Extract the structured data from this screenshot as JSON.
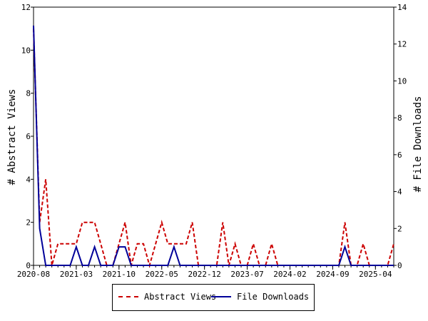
{
  "chart_data": {
    "type": "line",
    "title": "",
    "ylabel_left": "# Abstract Views",
    "ylabel_right": "# File Downloads",
    "xlabel": "",
    "x_tick_labels": [
      "2020-08",
      "2021-03",
      "2021-10",
      "2022-05",
      "2022-12",
      "2023-07",
      "2024-02",
      "2024-09",
      "2025-04"
    ],
    "ylim_left": [
      0,
      12
    ],
    "ylim_right": [
      0,
      14
    ],
    "yticks_left": [
      0,
      2,
      4,
      6,
      8,
      10,
      12
    ],
    "yticks_right": [
      0,
      2,
      4,
      6,
      8,
      10,
      12,
      14
    ],
    "grid": false,
    "legend_position": "bottom",
    "x_months": [
      "2020-08",
      "2020-09",
      "2020-10",
      "2020-11",
      "2020-12",
      "2021-01",
      "2021-02",
      "2021-03",
      "2021-04",
      "2021-05",
      "2021-06",
      "2021-07",
      "2021-08",
      "2021-09",
      "2021-10",
      "2021-11",
      "2021-12",
      "2022-01",
      "2022-02",
      "2022-03",
      "2022-04",
      "2022-05",
      "2022-06",
      "2022-07",
      "2022-08",
      "2022-09",
      "2022-10",
      "2022-11",
      "2022-12",
      "2023-01",
      "2023-02",
      "2023-03",
      "2023-04",
      "2023-05",
      "2023-06",
      "2023-07",
      "2023-08",
      "2023-09",
      "2023-10",
      "2023-11",
      "2023-12",
      "2024-01",
      "2024-02",
      "2024-03",
      "2024-04",
      "2024-05",
      "2024-06",
      "2024-07",
      "2024-08",
      "2024-09",
      "2024-10",
      "2024-11",
      "2024-12",
      "2025-01",
      "2025-02",
      "2025-03",
      "2025-04",
      "2025-05",
      "2025-06",
      "2025-07"
    ],
    "series": [
      {
        "name": "Abstract Views",
        "axis": "left",
        "color": "#cc0000",
        "dash": "dashed",
        "values": [
          11,
          2,
          4,
          0,
          1,
          1,
          1,
          1,
          2,
          2,
          2,
          1,
          0,
          0,
          1,
          2,
          0,
          1,
          1,
          0,
          1,
          2,
          1,
          1,
          1,
          1,
          2,
          0,
          0,
          0,
          0,
          2,
          0,
          1,
          0,
          0,
          1,
          0,
          0,
          1,
          0,
          0,
          0,
          0,
          0,
          0,
          0,
          0,
          0,
          0,
          0,
          2,
          0,
          0,
          1,
          0,
          0,
          0,
          0,
          1
        ]
      },
      {
        "name": "File Downloads",
        "axis": "right",
        "color": "#000099",
        "dash": "solid",
        "values": [
          13,
          2,
          0,
          0,
          0,
          0,
          0,
          1,
          0,
          0,
          1,
          0,
          0,
          0,
          1,
          1,
          0,
          0,
          0,
          0,
          0,
          0,
          0,
          1,
          0,
          0,
          0,
          0,
          0,
          0,
          0,
          0,
          0,
          0,
          0,
          0,
          0,
          0,
          0,
          0,
          0,
          0,
          0,
          0,
          0,
          0,
          0,
          0,
          0,
          0,
          0,
          1,
          0,
          0,
          0,
          0,
          0,
          0,
          0,
          0
        ]
      }
    ]
  }
}
